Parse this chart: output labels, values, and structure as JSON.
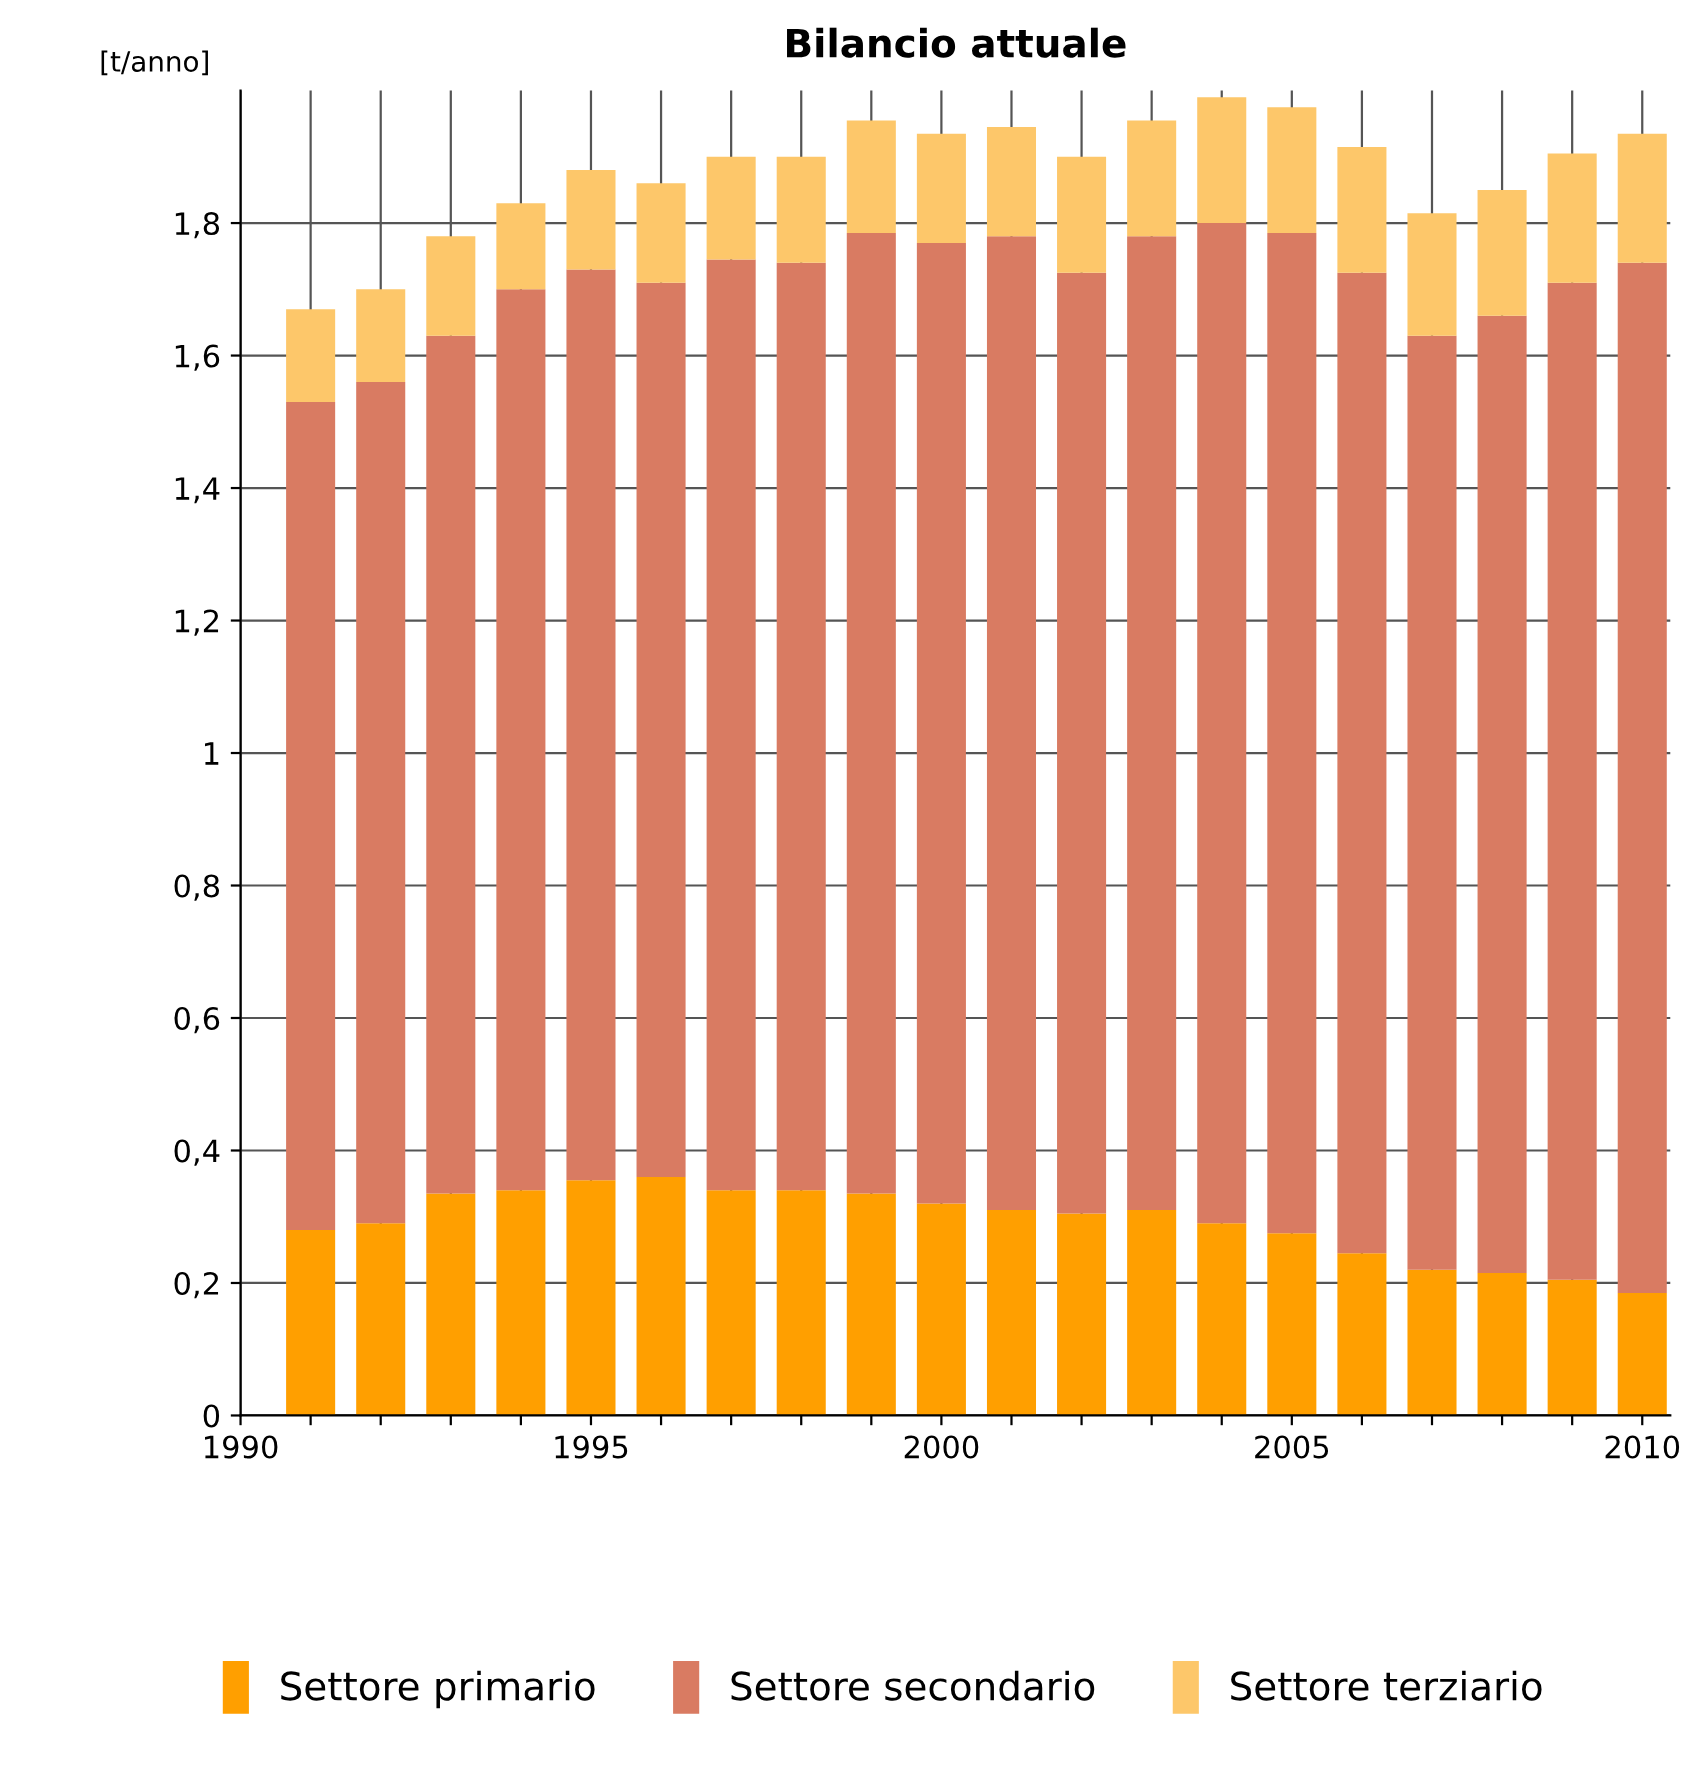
{
  "chart_data": {
    "type": "bar",
    "title": "Bilancio attuale",
    "ylabel": "[t/anno]",
    "stacked": true,
    "x": [
      1991,
      1992,
      1993,
      1994,
      1995,
      1996,
      1997,
      1998,
      1999,
      2000,
      2001,
      2002,
      2003,
      2004,
      2005,
      2006,
      2007,
      2008,
      2009,
      2010
    ],
    "series": [
      {
        "name": "Settore primario",
        "color": "#ff9f00",
        "values": [
          0.28,
          0.29,
          0.335,
          0.34,
          0.355,
          0.36,
          0.34,
          0.34,
          0.335,
          0.32,
          0.31,
          0.305,
          0.31,
          0.29,
          0.275,
          0.245,
          0.22,
          0.215,
          0.205,
          0.185
        ]
      },
      {
        "name": "Settore secondario",
        "color": "#d97b62",
        "values": [
          1.25,
          1.27,
          1.295,
          1.36,
          1.375,
          1.35,
          1.405,
          1.4,
          1.45,
          1.45,
          1.47,
          1.42,
          1.47,
          1.51,
          1.51,
          1.48,
          1.41,
          1.445,
          1.505,
          1.555
        ]
      },
      {
        "name": "Settore terziario",
        "color": "#fdc76a",
        "values": [
          0.14,
          0.14,
          0.15,
          0.13,
          0.15,
          0.15,
          0.155,
          0.16,
          0.17,
          0.165,
          0.165,
          0.175,
          0.175,
          0.19,
          0.19,
          0.19,
          0.185,
          0.19,
          0.195,
          0.195
        ]
      }
    ],
    "xlim": [
      1990,
      2010.4
    ],
    "xticks": [
      1990,
      {
        "value": 1991,
        "label": null
      },
      {
        "value": 1992,
        "label": null
      },
      {
        "value": 1993,
        "label": null
      },
      {
        "value": 1994,
        "label": null
      },
      1995,
      {
        "value": 1996,
        "label": null
      },
      {
        "value": 1997,
        "label": null
      },
      {
        "value": 1998,
        "label": null
      },
      {
        "value": 1999,
        "label": null
      },
      2000,
      {
        "value": 2001,
        "label": null
      },
      {
        "value": 2002,
        "label": null
      },
      {
        "value": 2003,
        "label": null
      },
      {
        "value": 2004,
        "label": null
      },
      2005,
      {
        "value": 2006,
        "label": null
      },
      {
        "value": 2007,
        "label": null
      },
      {
        "value": 2008,
        "label": null
      },
      {
        "value": 2009,
        "label": null
      },
      2010
    ],
    "ylim": [
      0,
      2.0
    ],
    "yticks": [
      0,
      {
        "value": 0.2,
        "label": "0,2"
      },
      {
        "value": 0.4,
        "label": "0,4"
      },
      {
        "value": 0.6,
        "label": "0,6"
      },
      {
        "value": 0.8,
        "label": "0,8"
      },
      1,
      {
        "value": 1.2,
        "label": "1,2"
      },
      {
        "value": 1.4,
        "label": "1,4"
      },
      {
        "value": 1.6,
        "label": "1,6"
      },
      {
        "value": 1.8,
        "label": "1,8"
      }
    ],
    "grid": true,
    "legend": "bottom"
  }
}
